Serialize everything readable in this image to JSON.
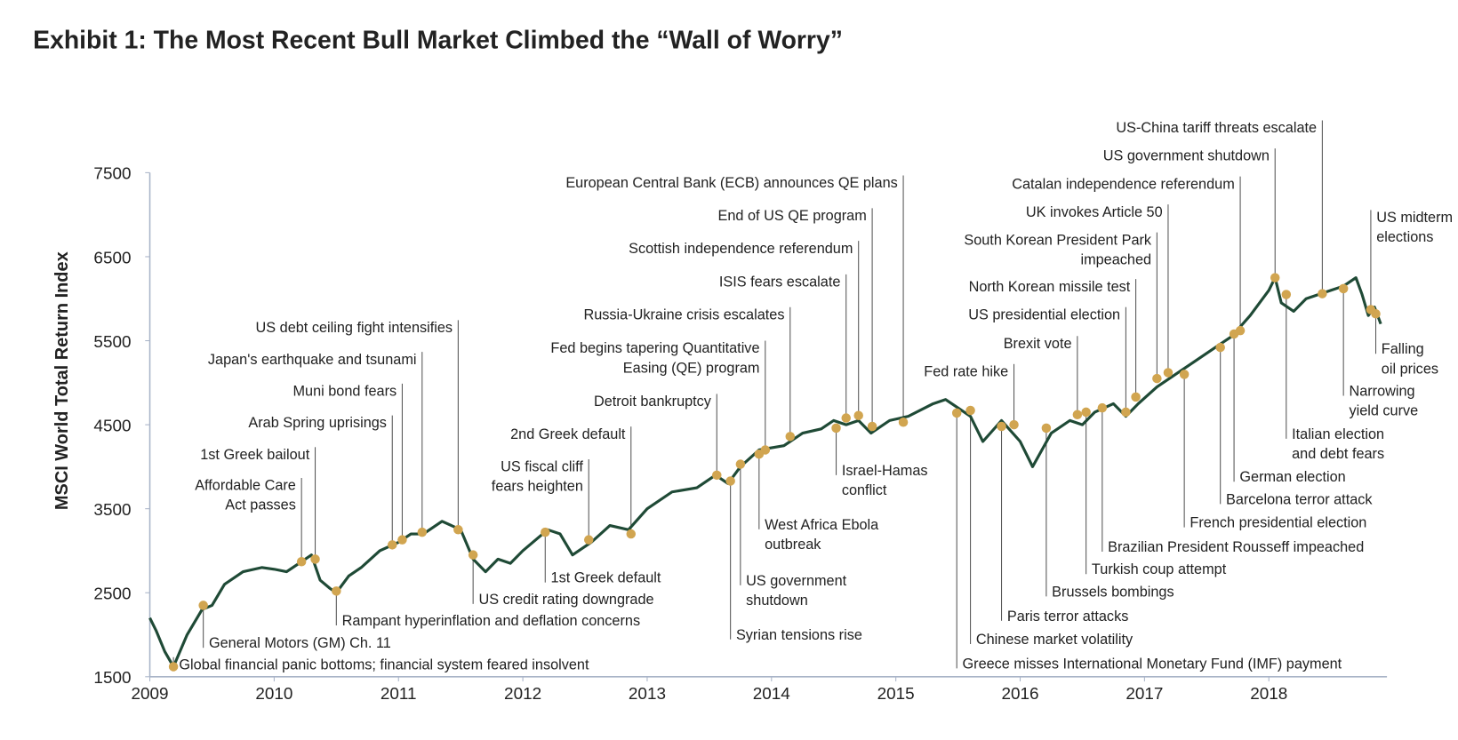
{
  "chart_data": {
    "type": "line",
    "title": "Exhibit 1: The Most Recent Bull Market Climbed the “Wall of Worry”",
    "y_label": "MSCI World Total Return Index",
    "color": "#1f4a36",
    "dot_color": "#d1a550",
    "xlim": [
      2009,
      2018.95
    ],
    "xticks": [
      2009,
      2010,
      2011,
      2012,
      2013,
      2014,
      2015,
      2016,
      2017,
      2018
    ],
    "ylim": [
      1500,
      7500
    ],
    "yticks": [
      1500,
      2500,
      3500,
      4500,
      5500,
      6500,
      7500
    ],
    "x": [
      2009.0,
      2009.05,
      2009.12,
      2009.19,
      2009.3,
      2009.42,
      2009.5,
      2009.6,
      2009.75,
      2009.9,
      2010.0,
      2010.1,
      2010.2,
      2010.3,
      2010.37,
      2010.45,
      2010.5,
      2010.6,
      2010.7,
      2010.85,
      2011.0,
      2011.1,
      2011.2,
      2011.35,
      2011.5,
      2011.6,
      2011.7,
      2011.8,
      2011.9,
      2012.0,
      2012.2,
      2012.3,
      2012.4,
      2012.55,
      2012.7,
      2012.85,
      2013.0,
      2013.2,
      2013.4,
      2013.55,
      2013.65,
      2013.75,
      2013.9,
      2014.1,
      2014.25,
      2014.4,
      2014.5,
      2014.6,
      2014.7,
      2014.8,
      2014.95,
      2015.1,
      2015.3,
      2015.4,
      2015.5,
      2015.6,
      2015.7,
      2015.85,
      2016.0,
      2016.1,
      2016.25,
      2016.4,
      2016.5,
      2016.6,
      2016.75,
      2016.85,
      2016.95,
      2017.1,
      2017.25,
      2017.4,
      2017.55,
      2017.7,
      2017.85,
      2018.0,
      2018.05,
      2018.1,
      2018.2,
      2018.3,
      2018.5,
      2018.6,
      2018.7,
      2018.75,
      2018.8,
      2018.85,
      2018.9
    ],
    "values": [
      2200,
      2050,
      1800,
      1620,
      2000,
      2300,
      2350,
      2600,
      2750,
      2800,
      2780,
      2750,
      2850,
      2950,
      2650,
      2550,
      2500,
      2700,
      2800,
      3000,
      3100,
      3200,
      3200,
      3350,
      3250,
      2900,
      2750,
      2900,
      2850,
      3000,
      3250,
      3200,
      2950,
      3100,
      3300,
      3250,
      3500,
      3700,
      3750,
      3900,
      3800,
      4000,
      4200,
      4250,
      4400,
      4450,
      4550,
      4500,
      4550,
      4400,
      4550,
      4600,
      4750,
      4800,
      4700,
      4600,
      4300,
      4550,
      4300,
      4000,
      4400,
      4550,
      4500,
      4650,
      4750,
      4600,
      4750,
      4950,
      5100,
      5250,
      5400,
      5550,
      5800,
      6100,
      6250,
      5950,
      5850,
      6000,
      6100,
      6150,
      6250,
      6050,
      5800,
      5900,
      5700
    ],
    "events": [
      {
        "label": [
          "Global financial panic bottoms; financial system feared insolvent"
        ],
        "x": 2009.19,
        "y": 1620
      },
      {
        "label": [
          "General Motors (GM) Ch. 11"
        ],
        "x": 2009.43,
        "y": 2350
      },
      {
        "label": [
          "Affordable Care",
          "Act passes"
        ],
        "x": 2010.22,
        "y": 2870
      },
      {
        "label": [
          "1st Greek bailout"
        ],
        "x": 2010.33,
        "y": 2900
      },
      {
        "label": [
          "Rampant hyperinflation and deflation concerns"
        ],
        "x": 2010.5,
        "y": 2520
      },
      {
        "label": [
          "Arab Spring uprisings"
        ],
        "x": 2010.95,
        "y": 3070
      },
      {
        "label": [
          "Muni bond fears"
        ],
        "x": 2011.03,
        "y": 3130
      },
      {
        "label": [
          "Japan's earthquake and tsunami"
        ],
        "x": 2011.19,
        "y": 3220
      },
      {
        "label": [
          "US debt ceiling fight intensifies"
        ],
        "x": 2011.48,
        "y": 3250
      },
      {
        "label": [
          "US credit rating downgrade"
        ],
        "x": 2011.6,
        "y": 2950
      },
      {
        "label": [
          "1st Greek default"
        ],
        "x": 2012.18,
        "y": 3220
      },
      {
        "label": [
          "US fiscal cliff",
          "fears heighten"
        ],
        "x": 2012.53,
        "y": 3130
      },
      {
        "label": [
          "2nd Greek default"
        ],
        "x": 2012.87,
        "y": 3200
      },
      {
        "label": [
          "Detroit bankruptcy"
        ],
        "x": 2013.56,
        "y": 3900
      },
      {
        "label": [
          "Syrian tensions rise"
        ],
        "x": 2013.67,
        "y": 3830
      },
      {
        "label": [
          "US government",
          "shutdown"
        ],
        "x": 2013.75,
        "y": 4030
      },
      {
        "label": [
          "Fed begins tapering Quantitative",
          "Easing (QE) program"
        ],
        "x": 2013.95,
        "y": 4200
      },
      {
        "label": [
          "West Africa Ebola",
          "outbreak"
        ],
        "x": 2013.9,
        "y": 4150
      },
      {
        "label": [
          "Russia-Ukraine crisis escalates"
        ],
        "x": 2014.15,
        "y": 4360
      },
      {
        "label": [
          "Israel-Hamas",
          "conflict"
        ],
        "x": 2014.52,
        "y": 4460
      },
      {
        "label": [
          "ISIS fears escalate"
        ],
        "x": 2014.6,
        "y": 4580
      },
      {
        "label": [
          "Scottish independence referendum"
        ],
        "x": 2014.7,
        "y": 4610
      },
      {
        "label": [
          "End of US QE program"
        ],
        "x": 2014.81,
        "y": 4480
      },
      {
        "label": [
          "European Central Bank (ECB) announces QE plans"
        ],
        "x": 2015.06,
        "y": 4530
      },
      {
        "label": [
          "Greece misses International Monetary Fund (IMF) payment"
        ],
        "x": 2015.49,
        "y": 4640
      },
      {
        "label": [
          "Chinese market volatility"
        ],
        "x": 2015.6,
        "y": 4670
      },
      {
        "label": [
          "Paris terror attacks"
        ],
        "x": 2015.85,
        "y": 4480
      },
      {
        "label": [
          "Fed rate hike"
        ],
        "x": 2015.95,
        "y": 4500
      },
      {
        "label": [
          "Brussels bombings"
        ],
        "x": 2016.21,
        "y": 4460
      },
      {
        "label": [
          "Brexit vote"
        ],
        "x": 2016.46,
        "y": 4620
      },
      {
        "label": [
          "Turkish coup attempt"
        ],
        "x": 2016.53,
        "y": 4650
      },
      {
        "label": [
          "Brazilian President Rousseff impeached"
        ],
        "x": 2016.66,
        "y": 4700
      },
      {
        "label": [
          "US presidential election"
        ],
        "x": 2016.85,
        "y": 4650
      },
      {
        "label": [
          "North Korean missile test"
        ],
        "x": 2016.93,
        "y": 4830
      },
      {
        "label": [
          "South Korean President Park",
          "impeached"
        ],
        "x": 2017.1,
        "y": 5050
      },
      {
        "label": [
          "UK invokes Article 50"
        ],
        "x": 2017.19,
        "y": 5120
      },
      {
        "label": [
          "French presidential election"
        ],
        "x": 2017.32,
        "y": 5100
      },
      {
        "label": [
          "Barcelona terror attack"
        ],
        "x": 2017.61,
        "y": 5420
      },
      {
        "label": [
          "German election"
        ],
        "x": 2017.72,
        "y": 5580
      },
      {
        "label": [
          "Catalan independence referendum"
        ],
        "x": 2017.77,
        "y": 5620
      },
      {
        "label": [
          "US government shutdown"
        ],
        "x": 2018.05,
        "y": 6250
      },
      {
        "label": [
          "Italian election",
          "and debt fears"
        ],
        "x": 2018.14,
        "y": 6050
      },
      {
        "label": [
          "US-China tariff threats escalate"
        ],
        "x": 2018.43,
        "y": 6060
      },
      {
        "label": [
          "Narrowing",
          "yield curve"
        ],
        "x": 2018.6,
        "y": 6120
      },
      {
        "label": [
          "Falling",
          "oil prices"
        ],
        "x": 2018.86,
        "y": 5820
      },
      {
        "label": [
          "US midterm",
          "elections"
        ],
        "x": 2018.82,
        "y": 5870
      }
    ]
  }
}
